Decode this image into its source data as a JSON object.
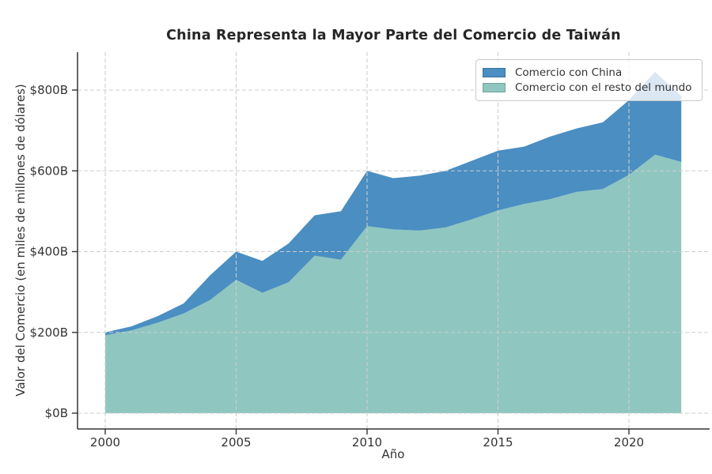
{
  "chart_data": {
    "type": "area",
    "stacked": true,
    "title": "China Representa la Mayor Parte del Comercio de Taiwán",
    "xlabel": "Año",
    "ylabel": "Valor del Comercio (en miles de millones de dólares)",
    "x": [
      2000,
      2001,
      2002,
      2003,
      2004,
      2005,
      2006,
      2007,
      2008,
      2009,
      2010,
      2011,
      2012,
      2013,
      2014,
      2015,
      2016,
      2017,
      2018,
      2019,
      2020,
      2021,
      2022
    ],
    "series": [
      {
        "name": "Comercio con China",
        "color": "#4a8ec2",
        "stack_role": "top",
        "values": [
          7,
          10,
          16,
          25,
          61,
          70,
          79,
          96,
          100,
          120,
          137,
          127,
          136,
          140,
          145,
          148,
          142,
          155,
          157,
          165,
          185,
          205,
          163
        ]
      },
      {
        "name": "Comercio con el resto del mundo",
        "color": "#8fc6c0",
        "stack_role": "base",
        "values": [
          193,
          205,
          224,
          247,
          280,
          330,
          298,
          324,
          390,
          380,
          463,
          455,
          452,
          460,
          480,
          502,
          518,
          530,
          548,
          555,
          590,
          640,
          622
        ]
      }
    ],
    "totals": [
      200,
      215,
      240,
      272,
      341,
      400,
      377,
      420,
      490,
      500,
      600,
      582,
      588,
      600,
      625,
      650,
      660,
      685,
      705,
      720,
      775,
      845,
      785
    ],
    "x_ticks": [
      2000,
      2005,
      2010,
      2015,
      2020
    ],
    "y_ticks": [
      0,
      200,
      400,
      600,
      800
    ],
    "y_tick_labels": [
      "$0B",
      "$200B",
      "$400B",
      "$600B",
      "$800B"
    ],
    "units": "miles de millones de dólares (B)",
    "xlim": [
      1998.9,
      2023.1
    ],
    "ylim": [
      0,
      894
    ],
    "grid": true,
    "grid_style": "dashed, drawn above areas",
    "legend_position": "upper right",
    "axis_color": "#333333",
    "grid_color": "#cdcdcd"
  }
}
